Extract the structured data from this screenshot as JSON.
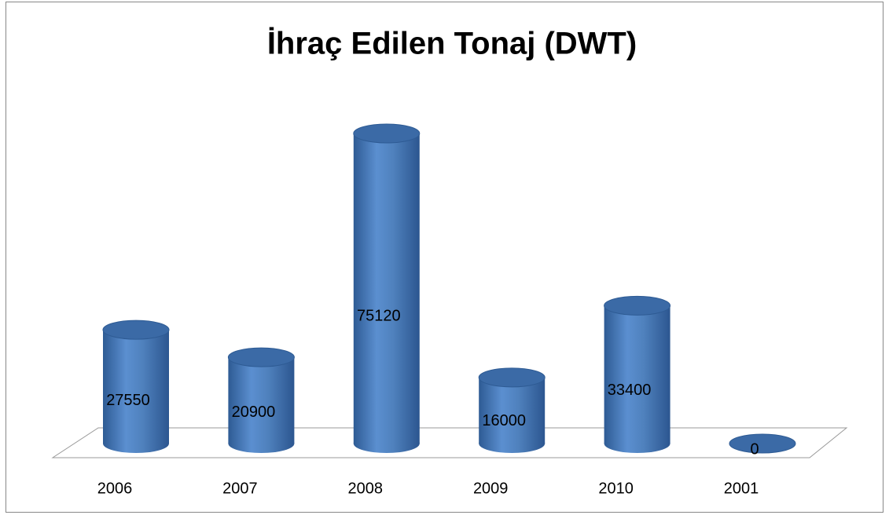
{
  "chart_data": {
    "type": "bar3d",
    "title": "İhraç Edilen Tonaj (DWT)",
    "categories": [
      "2006",
      "2007",
      "2008",
      "2009",
      "2010",
      "2001"
    ],
    "values": [
      27550,
      20900,
      75120,
      16000,
      33400,
      0
    ],
    "color": "#4f81bd"
  }
}
